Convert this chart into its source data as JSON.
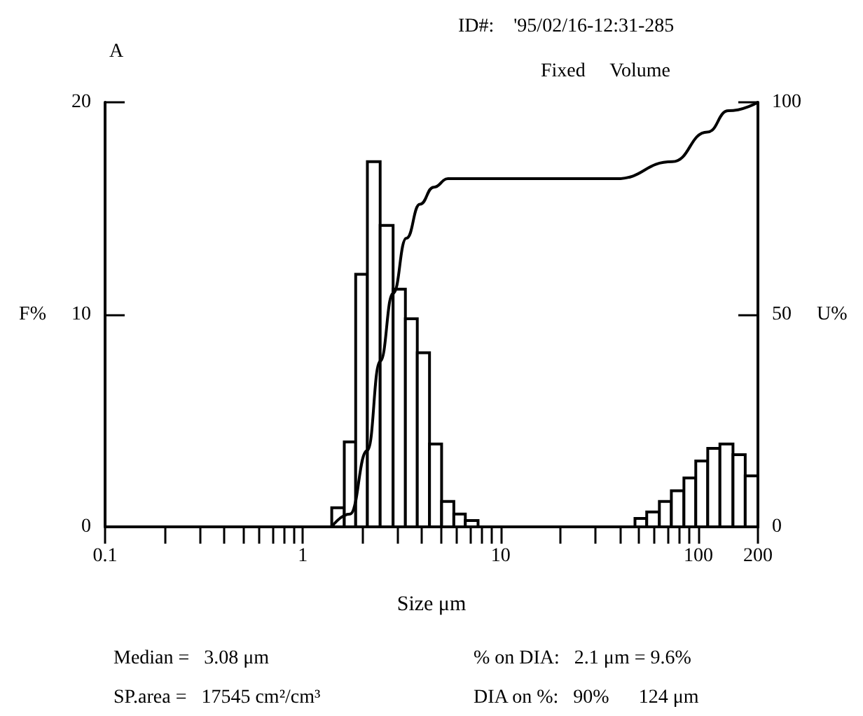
{
  "chart_data": {
    "type": "histogram",
    "xlabel": "Size μm",
    "ylabel": "F%",
    "y2label": "U%",
    "annotations": [
      "A",
      "ID#:    '95/02/16-12:31-285",
      "Fixed     Volume",
      "Median =   3.08 μm",
      "% on DIA:   2.1 μm = 9.6%",
      "SP.area =   17545 cm²/cm³",
      "DIA on %:   90%      124 μm"
    ],
    "series": [
      {
        "color": "#000000",
        "bins": [
          1.4,
          1.62,
          1.85,
          2.12,
          2.46,
          2.86,
          3.3,
          3.79,
          4.37,
          5.03,
          5.8,
          6.63,
          7.69,
          47.8,
          54.8,
          63.5,
          73.0,
          84.5,
          97.0,
          111.5,
          128.5,
          149.6,
          172.5,
          200
        ],
        "values": [
          0.9,
          4.0,
          11.9,
          17.2,
          14.2,
          11.2,
          9.8,
          8.2,
          3.9,
          1.2,
          0.6,
          0.3,
          0,
          0.4,
          0.7,
          1.2,
          1.7,
          2.3,
          3.1,
          3.7,
          3.9,
          3.4,
          2.4
        ]
      },
      {
        "type": "line",
        "axis": "y2",
        "color": "#000000",
        "x": [
          1.4,
          1.73,
          2.12,
          2.46,
          2.86,
          3.34,
          3.91,
          4.59,
          5.42,
          20,
          38.5,
          73.8,
          111,
          142,
          200
        ],
        "values": [
          0,
          3,
          18,
          39,
          55,
          68,
          76,
          80,
          82,
          82,
          82,
          86,
          93,
          98,
          100
        ]
      }
    ],
    "xlim": [
      0.1,
      200
    ],
    "log": "x",
    "xticks": [
      0.1,
      {
        "value": 0.2,
        "label": null
      },
      {
        "value": 0.3,
        "label": null
      },
      {
        "value": 0.4,
        "label": null
      },
      {
        "value": 0.5,
        "label": null
      },
      {
        "value": 0.6,
        "label": null
      },
      {
        "value": 0.7,
        "label": null
      },
      {
        "value": 0.8,
        "label": null
      },
      {
        "value": 0.9,
        "label": null
      },
      1,
      {
        "value": 2,
        "label": null
      },
      {
        "value": 3,
        "label": null
      },
      {
        "value": 4,
        "label": null
      },
      {
        "value": 5,
        "label": null
      },
      {
        "value": 6,
        "label": null
      },
      {
        "value": 7,
        "label": null
      },
      {
        "value": 8,
        "label": null
      },
      {
        "value": 9,
        "label": null
      },
      10,
      {
        "value": 20,
        "label": null
      },
      {
        "value": 30,
        "label": null
      },
      {
        "value": 40,
        "label": null
      },
      {
        "value": 50,
        "label": null
      },
      {
        "value": 60,
        "label": null
      },
      {
        "value": 70,
        "label": null
      },
      {
        "value": 80,
        "label": null
      },
      {
        "value": 90,
        "label": null
      },
      100,
      200
    ],
    "ylim": [
      0,
      20
    ],
    "yticks": [
      0,
      10,
      20
    ],
    "y2lim": [
      0,
      100
    ],
    "y2ticks": [
      0,
      50,
      100
    ],
    "grid": false
  }
}
